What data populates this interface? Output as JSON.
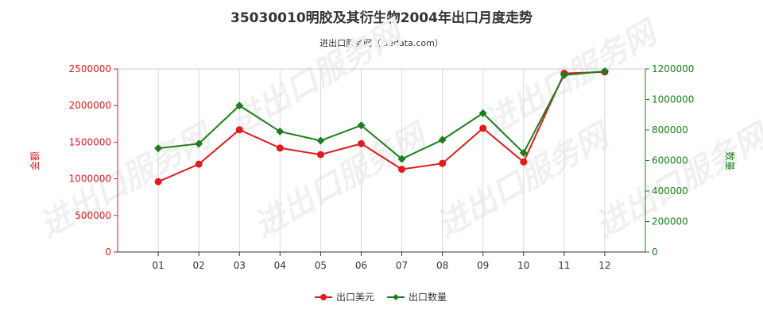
{
  "chart_data": {
    "type": "line",
    "title": "35030010明胶及其衍生物2004年出口月度走势",
    "subtitle": "进出口服务网（ciedata.com）",
    "categories": [
      "01",
      "02",
      "03",
      "04",
      "05",
      "06",
      "07",
      "08",
      "09",
      "10",
      "11",
      "12"
    ],
    "series": [
      {
        "name": "出口美元",
        "axis": "left",
        "color": "#e31a1c",
        "values": [
          960000,
          1200000,
          1670000,
          1420000,
          1330000,
          1480000,
          1130000,
          1210000,
          1690000,
          1230000,
          2440000,
          2460000
        ]
      },
      {
        "name": "出口数量",
        "axis": "right",
        "color": "#1a7f1a",
        "values": [
          680000,
          710000,
          960000,
          790000,
          730000,
          830000,
          610000,
          735000,
          910000,
          650000,
          1160000,
          1185000
        ]
      }
    ],
    "y_left": {
      "label": "金额",
      "range": [
        0,
        2500000
      ],
      "ticks": [
        "0",
        "500000",
        "1000000",
        "1500000",
        "2000000",
        "2500000"
      ],
      "color": "#e31a1c"
    },
    "y_right": {
      "label": "数量",
      "range": [
        0,
        1200000
      ],
      "ticks": [
        "0",
        "200000",
        "400000",
        "600000",
        "800000",
        "1000000",
        "1200000"
      ],
      "color": "#1a7f1a"
    },
    "grid": "vertical",
    "legend_position": "bottom-center",
    "watermark": "进出口服务网"
  }
}
